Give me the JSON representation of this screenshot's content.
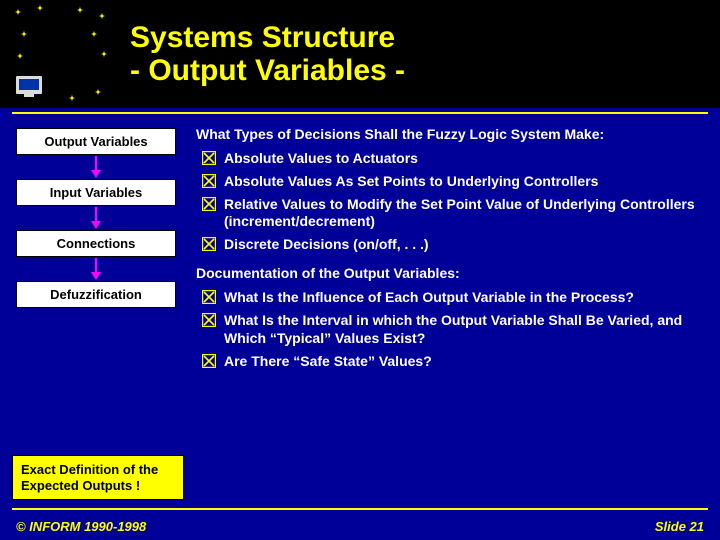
{
  "colors": {
    "slide_bg": "#000099",
    "header_bg": "#000000",
    "title_color": "#ffff00",
    "rule_color": "#ffff00",
    "body_text": "#ffffff",
    "box_bg": "#ffffff",
    "box_border": "#000000",
    "box_text": "#000000",
    "arrow_color": "#ff00ff",
    "bullet_mark": "#ffff00",
    "callout_bg": "#ffff00",
    "callout_border": "#000000",
    "callout_text": "#000000",
    "footer_text": "#ffff00",
    "logo_star": "#ffff00",
    "logo_silhouette": "#000000",
    "logo_monitor_body": "#dcdcdc",
    "logo_monitor_screen": "#0033aa"
  },
  "fontsizes": {
    "title": 30,
    "flow_box": 13,
    "heading": 14,
    "bullet": 14,
    "callout": 13,
    "footer": 13
  },
  "title": "Systems Structure\n- Output Variables -",
  "flow": {
    "items": [
      "Output Variables",
      "Input Variables",
      "Connections",
      "Defuzzification"
    ]
  },
  "section1": {
    "heading": "What Types of Decisions Shall the Fuzzy Logic System Make:",
    "bullets": [
      "Absolute Values to Actuators",
      "Absolute Values As Set Points to Underlying Controllers",
      "Relative Values to Modify the Set Point Value of Underlying Controllers (increment/decrement)",
      "Discrete Decisions (on/off, . . .)"
    ]
  },
  "section2": {
    "heading": "Documentation of the Output Variables:",
    "bullets": [
      "What Is the Influence of Each Output Variable in the Process?",
      "What Is the Interval in which the Output Variable Shall Be Varied, and Which “Typical” Values Exist?",
      "Are  There “Safe State” Values?"
    ]
  },
  "callout": "Exact Definition of the Expected Outputs !",
  "footer": {
    "left": "© INFORM 1990-1998",
    "right": "Slide 21"
  }
}
